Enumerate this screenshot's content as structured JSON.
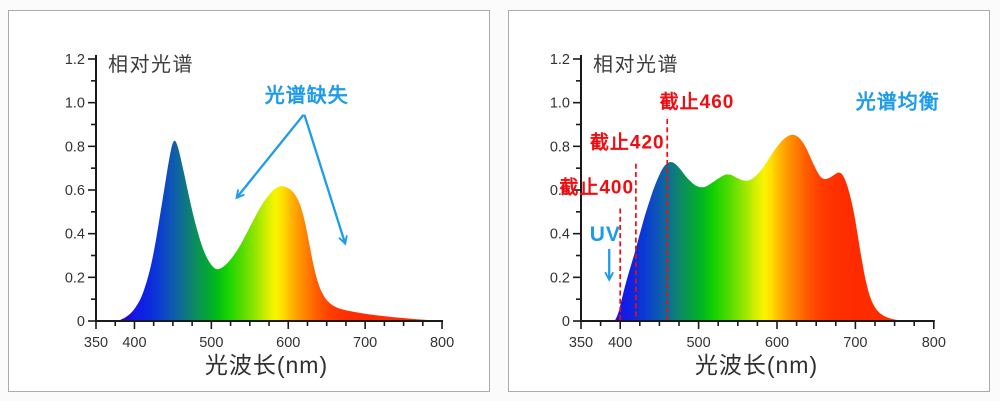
{
  "page": {
    "background": "#fbfbfb",
    "panel_background": "#ffffff",
    "panel_border": "#ababab"
  },
  "style": {
    "axis_color": "#1a1a1a",
    "tick_label_color": "#333333",
    "title_color": "#3d3d3d",
    "annotation_blue": "#1e9be9",
    "annotation_red": "#f10c12",
    "spectrum_stops": [
      [
        390,
        "#2005d2"
      ],
      [
        400,
        "#1518e8"
      ],
      [
        415,
        "#0d24e0"
      ],
      [
        432,
        "#0b3cd2"
      ],
      [
        450,
        "#0e5ab0"
      ],
      [
        462,
        "#0e6e90"
      ],
      [
        476,
        "#0c8866"
      ],
      [
        490,
        "#069e42"
      ],
      [
        505,
        "#00b81e"
      ],
      [
        520,
        "#14d200"
      ],
      [
        540,
        "#55dc00"
      ],
      [
        558,
        "#96e600"
      ],
      [
        572,
        "#d2ee00"
      ],
      [
        583,
        "#f8f400"
      ],
      [
        592,
        "#ffe100"
      ],
      [
        602,
        "#ffbc00"
      ],
      [
        612,
        "#ff9c00"
      ],
      [
        624,
        "#ff7e00"
      ],
      [
        637,
        "#ff5c00"
      ],
      [
        652,
        "#ff4200"
      ],
      [
        668,
        "#ff3200"
      ],
      [
        700,
        "#ff2a00"
      ],
      [
        800,
        "#ff3600"
      ]
    ]
  },
  "chart_data": [
    {
      "type": "area",
      "title": "相对光谱",
      "xlabel": "光波长(nm)",
      "ylabel": "",
      "xlim": [
        350,
        800
      ],
      "ylim": [
        0,
        1.2
      ],
      "grid": false,
      "legend": false,
      "x_tick_labels": [
        "350",
        "400",
        "500",
        "600",
        "700",
        "800"
      ],
      "x_labeled_ticks": [
        350,
        400,
        500,
        600,
        700,
        800
      ],
      "x_minor_step": 25,
      "y_tick_labels": [
        "0",
        "0.2",
        "0.4",
        "0.6",
        "0.8",
        "1.0",
        "1.2"
      ],
      "y_tick_values": [
        0,
        0.2,
        0.4,
        0.6,
        0.8,
        1.0,
        1.2
      ],
      "y_minor_step": 0.1,
      "series": [
        {
          "x": [
            378,
            385,
            392,
            398,
            404,
            410,
            416,
            422,
            428,
            434,
            440,
            445,
            449,
            452,
            455,
            459,
            464,
            470,
            476,
            482,
            488,
            494,
            500,
            506,
            512,
            518,
            526,
            534,
            542,
            550,
            558,
            566,
            574,
            582,
            590,
            598,
            606,
            614,
            621,
            627,
            633,
            639,
            645,
            651,
            658,
            666,
            676,
            688,
            702,
            716,
            730,
            745,
            760,
            775,
            788,
            800
          ],
          "y": [
            0,
            0.01,
            0.025,
            0.045,
            0.075,
            0.115,
            0.18,
            0.26,
            0.37,
            0.5,
            0.63,
            0.74,
            0.81,
            0.83,
            0.815,
            0.765,
            0.685,
            0.585,
            0.49,
            0.41,
            0.34,
            0.29,
            0.255,
            0.235,
            0.24,
            0.255,
            0.285,
            0.325,
            0.375,
            0.43,
            0.485,
            0.535,
            0.575,
            0.605,
            0.62,
            0.613,
            0.595,
            0.55,
            0.47,
            0.36,
            0.25,
            0.17,
            0.12,
            0.09,
            0.07,
            0.057,
            0.048,
            0.04,
            0.032,
            0.026,
            0.02,
            0.015,
            0.01,
            0.006,
            0.003,
            0.001
          ]
        }
      ],
      "annotations": {
        "texts": [
          {
            "label": "光谱缺失",
            "x_nm": 624,
            "y": 1.035,
            "color": "blue",
            "size": 20,
            "weight": 600
          }
        ],
        "arrows": [
          {
            "x1_nm": 620,
            "y1": 0.945,
            "x2_nm": 533,
            "y2": 0.565,
            "color": "blue"
          },
          {
            "x1_nm": 621,
            "y1": 0.945,
            "x2_nm": 674,
            "y2": 0.355,
            "color": "blue"
          }
        ],
        "cutoff_lines": []
      }
    },
    {
      "type": "area",
      "title": "相对光谱",
      "xlabel": "光波长(nm)",
      "ylabel": "",
      "xlim": [
        350,
        800
      ],
      "ylim": [
        0,
        1.2
      ],
      "grid": false,
      "legend": false,
      "x_tick_labels": [
        "350",
        "400",
        "500",
        "600",
        "700",
        "800"
      ],
      "x_labeled_ticks": [
        350,
        400,
        500,
        600,
        700,
        800
      ],
      "x_minor_step": 25,
      "y_tick_labels": [
        "0",
        "0.2",
        "0.4",
        "0.6",
        "0.8",
        "1.0",
        "1.2"
      ],
      "y_tick_values": [
        0,
        0.2,
        0.4,
        0.6,
        0.8,
        1.0,
        1.2
      ],
      "y_minor_step": 0.1,
      "series": [
        {
          "x": [
            393,
            397,
            401,
            405,
            410,
            415,
            420,
            425,
            430,
            436,
            442,
            448,
            454,
            460,
            466,
            472,
            478,
            484,
            490,
            496,
            502,
            508,
            514,
            520,
            526,
            532,
            537,
            543,
            549,
            556,
            562,
            568,
            575,
            582,
            590,
            598,
            606,
            613,
            620,
            627,
            633,
            639,
            645,
            651,
            656,
            661,
            667,
            673,
            679,
            684,
            689,
            694,
            699,
            704,
            709,
            714,
            719,
            725,
            732,
            740,
            749,
            758,
            768
          ],
          "y": [
            0,
            0.025,
            0.085,
            0.145,
            0.21,
            0.27,
            0.33,
            0.4,
            0.465,
            0.535,
            0.6,
            0.655,
            0.7,
            0.725,
            0.73,
            0.715,
            0.69,
            0.66,
            0.638,
            0.62,
            0.612,
            0.613,
            0.625,
            0.64,
            0.655,
            0.668,
            0.673,
            0.668,
            0.655,
            0.644,
            0.641,
            0.65,
            0.672,
            0.7,
            0.745,
            0.79,
            0.825,
            0.847,
            0.855,
            0.845,
            0.82,
            0.78,
            0.73,
            0.685,
            0.657,
            0.648,
            0.655,
            0.67,
            0.684,
            0.67,
            0.63,
            0.565,
            0.48,
            0.37,
            0.26,
            0.17,
            0.105,
            0.06,
            0.032,
            0.016,
            0.007,
            0.002,
            0
          ]
        }
      ],
      "annotations": {
        "texts": [
          {
            "label": "截止460",
            "x_nm": 498,
            "y": 1.005,
            "color": "red",
            "size": 19,
            "weight": 600
          },
          {
            "label": "截止420",
            "x_nm": 409,
            "y": 0.82,
            "color": "red",
            "size": 19,
            "weight": 600
          },
          {
            "label": "截止400",
            "x_nm": 370,
            "y": 0.615,
            "color": "red",
            "size": 19,
            "weight": 600
          },
          {
            "label": "UV",
            "x_nm": 381,
            "y": 0.4,
            "color": "blue",
            "size": 21,
            "weight": 700
          },
          {
            "label": "光谱均衡",
            "x_nm": 754,
            "y": 1.005,
            "color": "blue",
            "size": 20,
            "weight": 600
          }
        ],
        "arrows": [
          {
            "x1_nm": 386,
            "y1": 0.33,
            "x2_nm": 386,
            "y2": 0.19,
            "color": "blue"
          }
        ],
        "cutoff_lines": [
          {
            "x_nm": 400,
            "y_top": 0.515
          },
          {
            "x_nm": 420,
            "y_top": 0.72
          },
          {
            "x_nm": 460,
            "y_top": 0.925
          }
        ]
      }
    }
  ]
}
